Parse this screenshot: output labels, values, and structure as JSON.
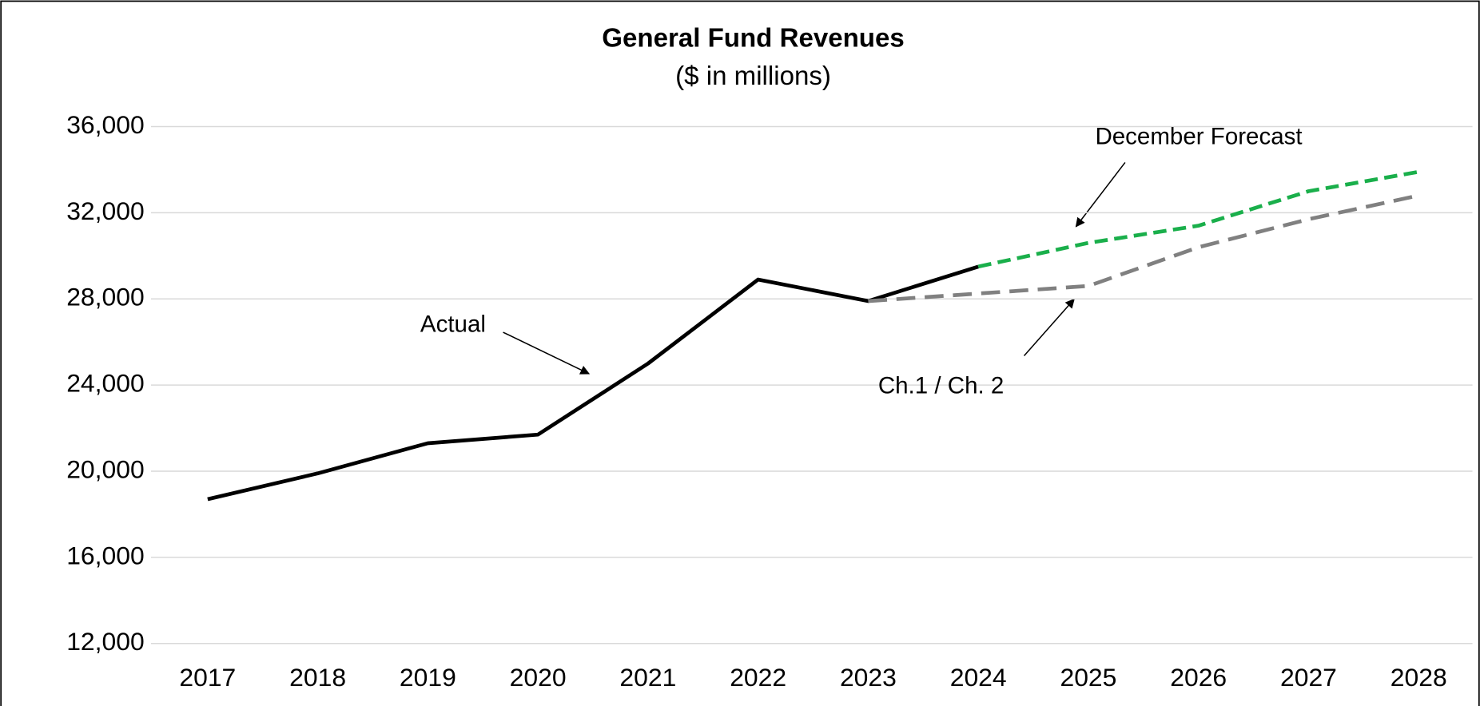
{
  "chart_data": {
    "type": "line",
    "title": "General Fund Revenues",
    "subtitle": "($ in millions)",
    "categories": [
      "2017",
      "2018",
      "2019",
      "2020",
      "2021",
      "2022",
      "2023",
      "2024",
      "2025",
      "2026",
      "2027",
      "2028"
    ],
    "series": [
      {
        "name": "Actual",
        "color": "#000000",
        "values": [
          18700,
          19900,
          21300,
          21700,
          25000,
          28900,
          27900,
          29500,
          null,
          null,
          null,
          null
        ]
      },
      {
        "name": "December Forecast",
        "color": "#1aaf4b",
        "values": [
          null,
          null,
          null,
          null,
          null,
          null,
          null,
          29500,
          30600,
          31400,
          33000,
          33900
        ]
      },
      {
        "name": "Ch.1 / Ch. 2",
        "color": "#808080",
        "values": [
          null,
          null,
          null,
          null,
          null,
          null,
          27900,
          28250,
          28600,
          30400,
          31700,
          32800
        ]
      }
    ],
    "ylim": [
      12000,
      36000
    ],
    "yticks": [
      {
        "value": 12000,
        "label": "12,000"
      },
      {
        "value": 16000,
        "label": "16,000"
      },
      {
        "value": 20000,
        "label": "20,000"
      },
      {
        "value": 24000,
        "label": "24,000"
      },
      {
        "value": 28000,
        "label": "28,000"
      },
      {
        "value": 32000,
        "label": "32,000"
      },
      {
        "value": 36000,
        "label": "36,000"
      }
    ],
    "grid": true
  }
}
